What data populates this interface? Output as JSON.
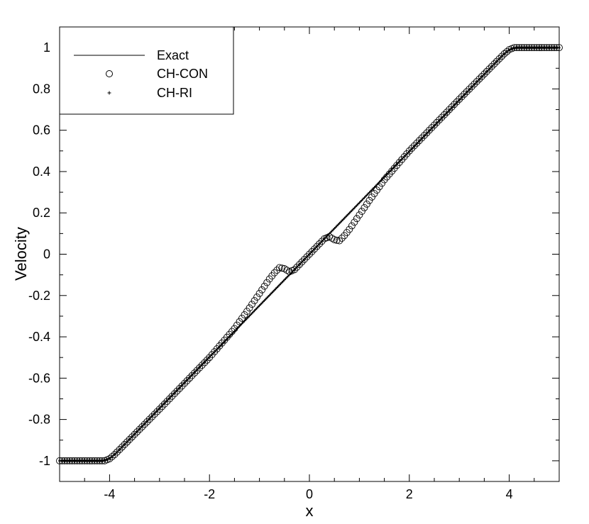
{
  "chart_data": {
    "type": "scatter",
    "title": "",
    "xlabel": "x",
    "ylabel": "Velocity",
    "xlim": [
      -5,
      5
    ],
    "ylim": [
      -1.1,
      1.1
    ],
    "x_ticks": [
      "-4",
      "-2",
      "0",
      "2",
      "4"
    ],
    "y_ticks": [
      "1",
      "0.8",
      "0.6",
      "0.4",
      "0.2",
      "0",
      "-0.2",
      "-0.4",
      "-0.6",
      "-0.8",
      "-1"
    ],
    "grid": false,
    "legend_position": "top-left",
    "legend": [
      {
        "label": "Exact",
        "marker": "line"
      },
      {
        "label": "CH-CON",
        "marker": "circle"
      },
      {
        "label": "CH-RI",
        "marker": "plus"
      }
    ],
    "series": [
      {
        "name": "Exact",
        "style": "line",
        "x": [
          -5,
          -4.15,
          -4.0,
          -3.85,
          3.85,
          4.0,
          4.15,
          5
        ],
        "y": [
          -1,
          -1,
          -0.985,
          -0.96,
          0.96,
          0.985,
          1,
          1
        ]
      },
      {
        "name": "CH-CON",
        "style": "circle",
        "x": [
          -5,
          -4.1,
          -4.0,
          -3.9,
          -3.0,
          -2.0,
          -1.5,
          -1.2,
          -1.0,
          -0.8,
          -0.7,
          -0.6,
          -0.5,
          -0.4,
          -0.3,
          -0.2,
          0,
          0.2,
          0.3,
          0.4,
          0.5,
          0.6,
          0.7,
          0.8,
          1.0,
          1.2,
          1.5,
          2.0,
          3.0,
          3.9,
          4.0,
          4.1,
          5
        ],
        "y": [
          -1,
          -1,
          -0.99,
          -0.97,
          -0.75,
          -0.5,
          -0.36,
          -0.26,
          -0.19,
          -0.12,
          -0.09,
          -0.065,
          -0.07,
          -0.085,
          -0.075,
          -0.05,
          0,
          0.05,
          0.075,
          0.085,
          0.07,
          0.065,
          0.09,
          0.12,
          0.19,
          0.26,
          0.36,
          0.5,
          0.75,
          0.97,
          0.99,
          1,
          1
        ]
      },
      {
        "name": "CH-RI",
        "style": "plus",
        "x": [
          -5,
          -4.1,
          -4.0,
          -3.9,
          3.9,
          4.0,
          4.1,
          5
        ],
        "y": [
          -1,
          -1,
          -0.99,
          -0.97,
          0.97,
          0.99,
          1,
          1
        ]
      }
    ]
  }
}
